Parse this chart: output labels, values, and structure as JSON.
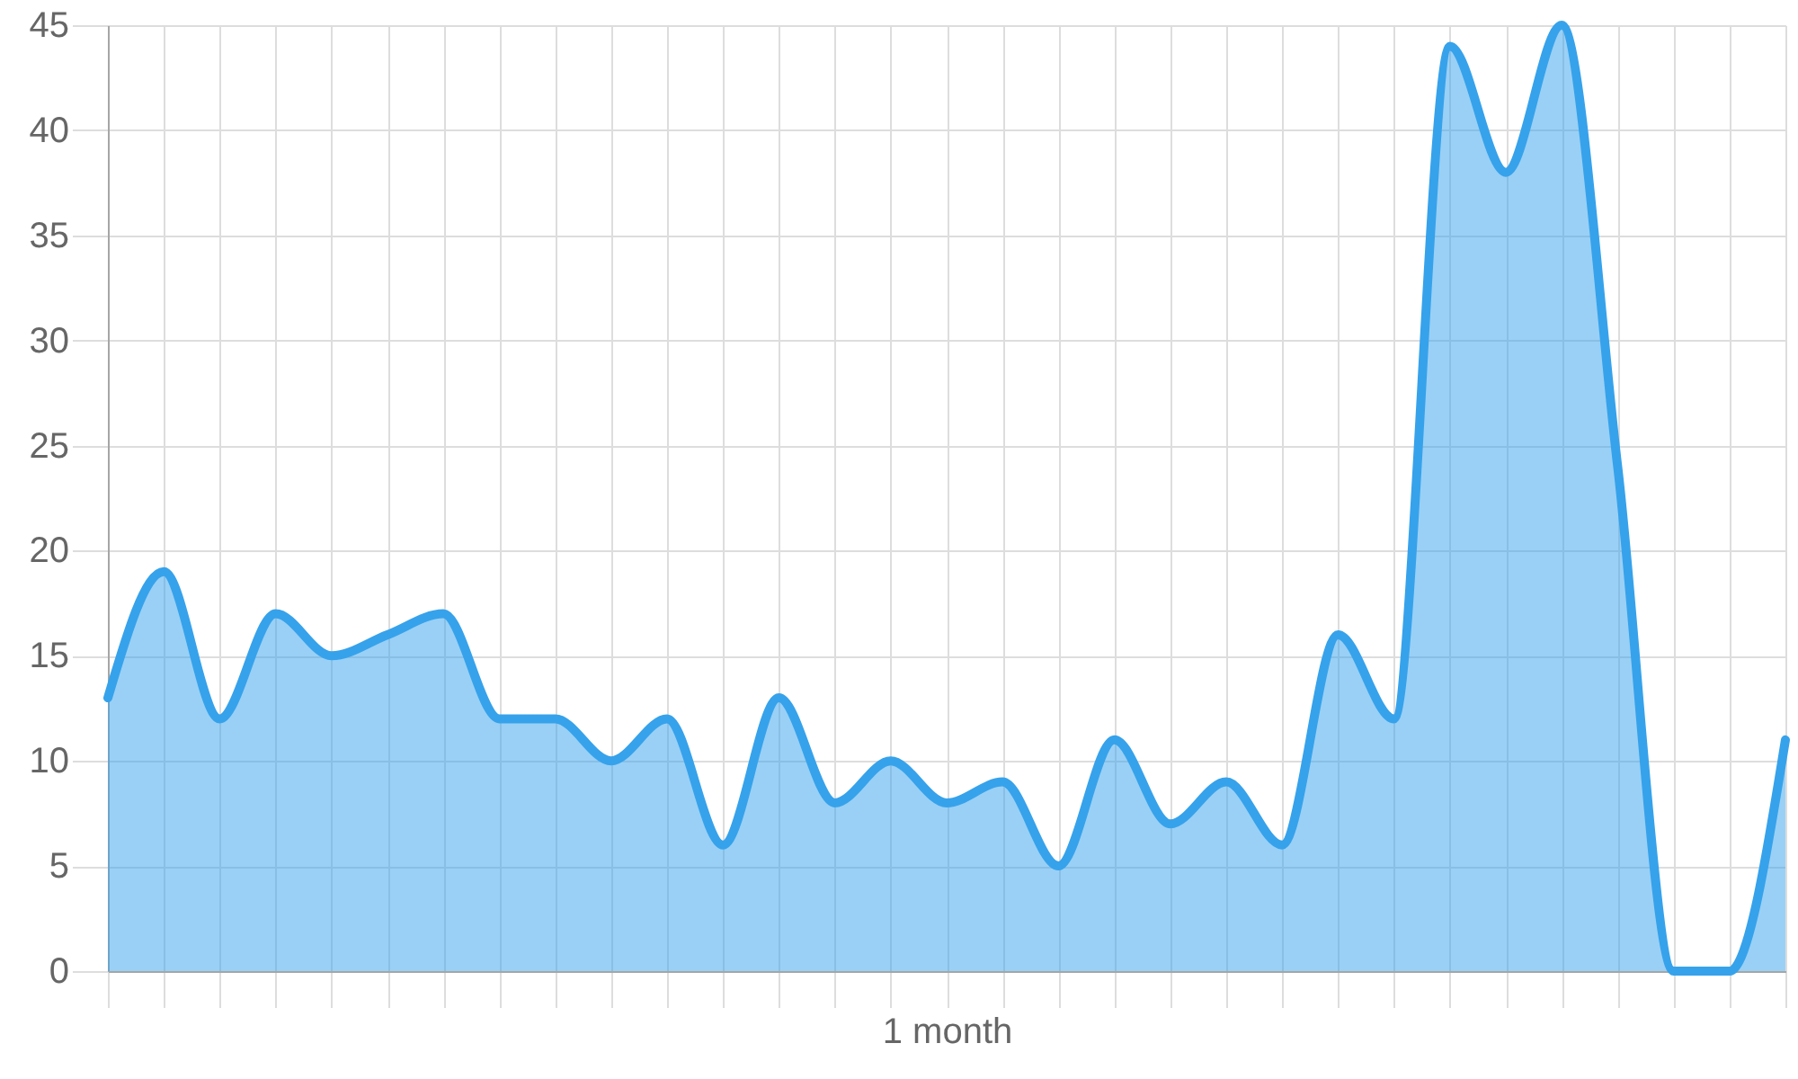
{
  "chart_data": {
    "type": "area",
    "xlabel": "1 month",
    "categories": [
      null,
      null,
      null,
      null,
      null,
      null,
      null,
      null,
      null,
      null,
      null,
      null,
      null,
      null,
      null,
      null,
      null,
      null,
      null,
      null,
      null,
      null,
      null,
      null,
      null,
      null,
      null,
      null,
      null,
      null,
      null
    ],
    "series": [
      {
        "color": "#36a2eb",
        "values": [
          13,
          19,
          12,
          17,
          15,
          16,
          17,
          12,
          12,
          10,
          12,
          6,
          13,
          8,
          10,
          8,
          9,
          5,
          11,
          7,
          9,
          6,
          16,
          12,
          44,
          38,
          45,
          24,
          0,
          0,
          11
        ]
      }
    ],
    "ylim": [
      0,
      45
    ],
    "yticks": [
      0,
      5,
      10,
      15,
      20,
      25,
      30,
      35,
      40,
      45
    ],
    "grid": true
  }
}
